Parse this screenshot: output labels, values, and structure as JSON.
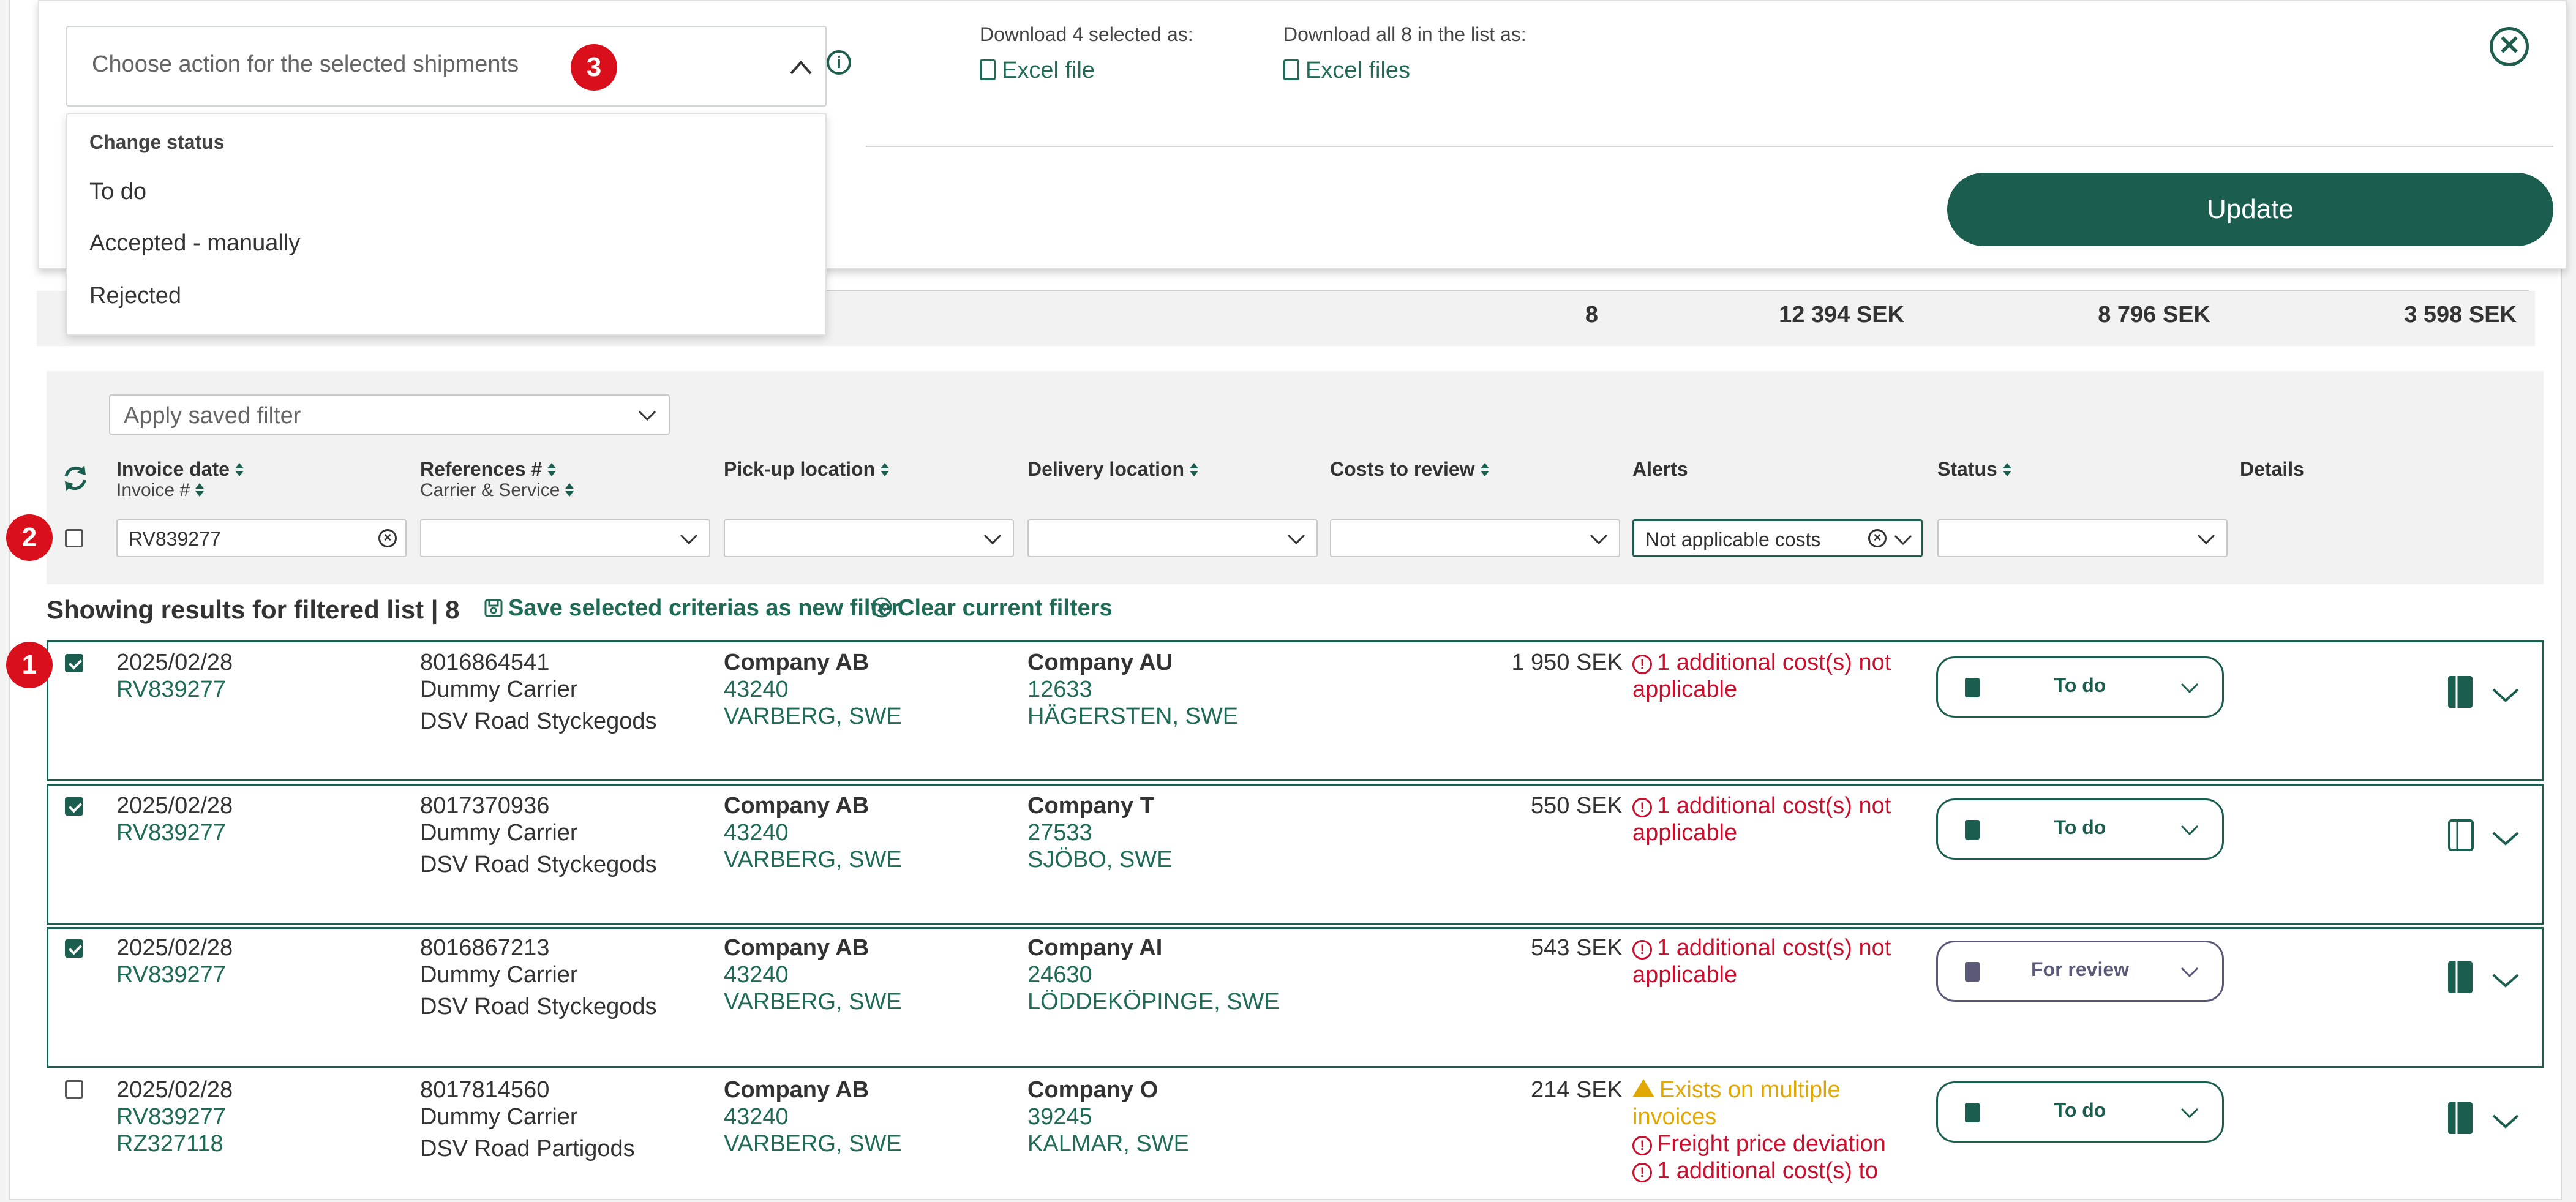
{
  "panel": {
    "action_placeholder": "Choose action for the selected shipments",
    "badge_action": "3",
    "download_selected_label": "Download 4 selected as:",
    "download_selected_link": "Excel file",
    "download_all_label": "Download all 8 in the list as:",
    "download_all_link": "Excel files",
    "update_button": "Update",
    "close_symbol": "✕"
  },
  "dropdown": {
    "group_label": "Change status",
    "items": [
      "To do",
      "Accepted - manually",
      "Rejected"
    ]
  },
  "summary": {
    "count": "8",
    "total1": "12 394 SEK",
    "total2": "8 796 SEK",
    "total3": "3 598 SEK"
  },
  "filters": {
    "saved_filter_placeholder": "Apply saved filter",
    "badge_filter": "2",
    "columns": {
      "invoice_date": "Invoice date",
      "invoice_no": "Invoice #",
      "references": "References #",
      "carrier": "Carrier & Service",
      "pickup": "Pick-up location",
      "delivery": "Delivery location",
      "costs": "Costs to review",
      "alerts": "Alerts",
      "status": "Status",
      "details": "Details"
    },
    "invoice_filter_value": "RV839277",
    "alerts_filter_value": "Not applicable costs"
  },
  "results": {
    "title": "Showing results for filtered list | 8",
    "save_filter": "Save selected criterias as new filter",
    "clear_filters": "Clear current filters",
    "badge_row": "1"
  },
  "rows": [
    {
      "checked": true,
      "date": "2025/02/28",
      "invoice": "RV839277",
      "invoice2": "",
      "ref": "8016864541",
      "carrier": "Dummy Carrier",
      "service": "DSV Road Styckegods",
      "pickup_name": "Company AB",
      "pickup_zip": "43240",
      "pickup_city": "VARBERG, SWE",
      "delivery_name": "Company AU",
      "delivery_zip": "12633",
      "delivery_city": "HÄGERSTEN, SWE",
      "cost": "1 950 SEK",
      "alert1": "1 additional cost(s) not",
      "alert1b": "applicable",
      "status": "To do"
    },
    {
      "checked": true,
      "date": "2025/02/28",
      "invoice": "RV839277",
      "invoice2": "",
      "ref": "8017370936",
      "carrier": "Dummy Carrier",
      "service": "DSV Road Styckegods",
      "pickup_name": "Company AB",
      "pickup_zip": "43240",
      "pickup_city": "VARBERG, SWE",
      "delivery_name": "Company T",
      "delivery_zip": "27533",
      "delivery_city": "SJÖBO, SWE",
      "cost": "550 SEK",
      "alert1": "1 additional cost(s) not",
      "alert1b": "applicable",
      "status": "To do"
    },
    {
      "checked": true,
      "date": "2025/02/28",
      "invoice": "RV839277",
      "invoice2": "",
      "ref": "8016867213",
      "carrier": "Dummy Carrier",
      "service": "DSV Road Styckegods",
      "pickup_name": "Company AB",
      "pickup_zip": "43240",
      "pickup_city": "VARBERG, SWE",
      "delivery_name": "Company AI",
      "delivery_zip": "24630",
      "delivery_city": "LÖDDEKÖPINGE, SWE",
      "cost": "543 SEK",
      "alert1": "1 additional cost(s) not",
      "alert1b": "applicable",
      "status": "For review"
    },
    {
      "checked": false,
      "date": "2025/02/28",
      "invoice": "RV839277",
      "invoice2": "RZ327118",
      "ref": "8017814560",
      "carrier": "Dummy Carrier",
      "service": "DSV Road Partigods",
      "pickup_name": "Company AB",
      "pickup_zip": "43240",
      "pickup_city": "VARBERG, SWE",
      "delivery_name": "Company O",
      "delivery_zip": "39245",
      "delivery_city": "KALMAR, SWE",
      "cost": "214 SEK",
      "warn1": "Exists on multiple",
      "warn1b": "invoices",
      "alert2": "Freight price deviation",
      "alert3": "1 additional cost(s) to",
      "status": "To do"
    }
  ],
  "colors": {
    "accent": "#1b5e4f",
    "link": "#1f6b57",
    "alert_red": "#c8102e",
    "alert_amber": "#e0a800",
    "badge_red": "#d90f1b",
    "review": "#5a5a78"
  }
}
